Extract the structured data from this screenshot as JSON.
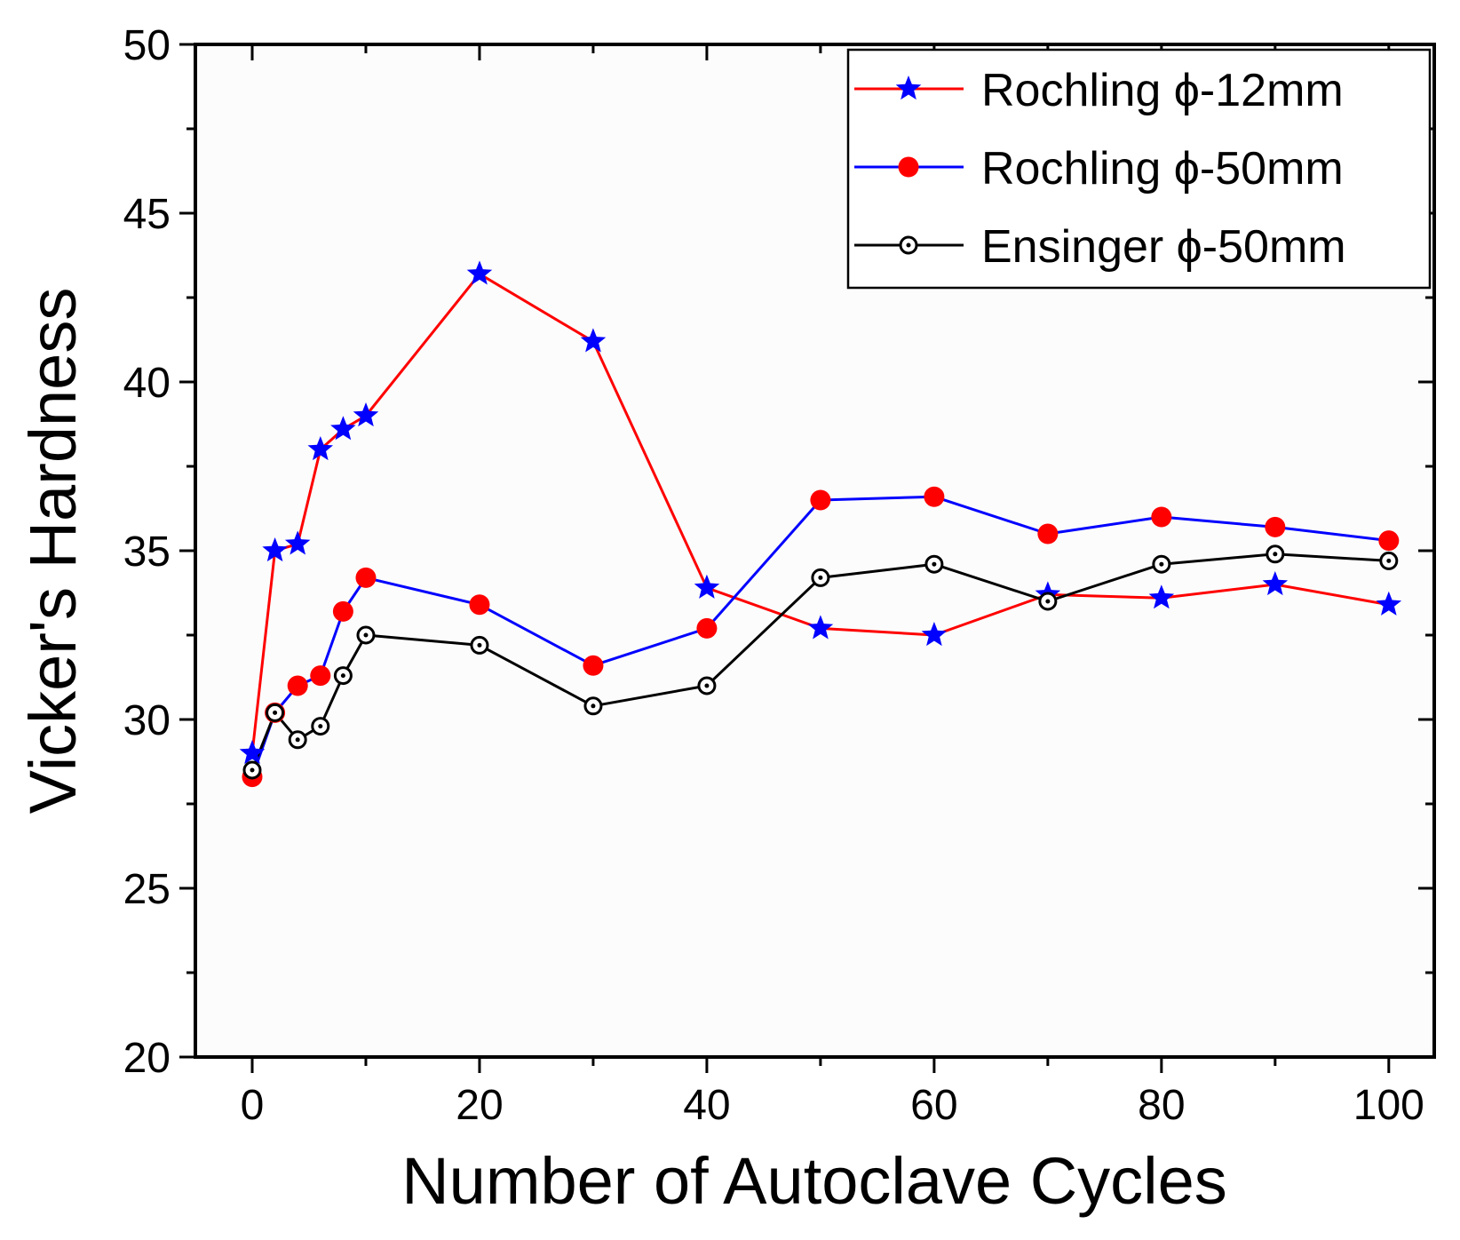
{
  "chart_data": {
    "type": "line",
    "title": "",
    "xlabel": "Number of Autoclave Cycles",
    "ylabel": "Vicker's Hardness",
    "xlim": [
      -5,
      104
    ],
    "ylim": [
      20,
      50
    ],
    "xticks": [
      0,
      20,
      40,
      60,
      80,
      100
    ],
    "yticks": [
      20,
      25,
      30,
      35,
      40,
      45,
      50
    ],
    "legend_position": "top-right",
    "series": [
      {
        "name": "Rochling ϕ-12mm",
        "line_color": "#ff0000",
        "marker": "star",
        "marker_color": "#0000ff",
        "x": [
          0,
          2,
          4,
          6,
          8,
          10,
          20,
          30,
          40,
          50,
          60,
          70,
          80,
          90,
          100
        ],
        "y": [
          29.0,
          35.0,
          35.2,
          38.0,
          38.6,
          39.0,
          43.2,
          41.2,
          33.9,
          32.7,
          32.5,
          33.7,
          33.6,
          34.0,
          33.4
        ]
      },
      {
        "name": "Rochling ϕ-50mm",
        "line_color": "#0000ff",
        "marker": "circle",
        "marker_color": "#ff0000",
        "x": [
          0,
          2,
          4,
          6,
          8,
          10,
          20,
          30,
          40,
          50,
          60,
          70,
          80,
          90,
          100
        ],
        "y": [
          28.3,
          30.2,
          31.0,
          31.3,
          33.2,
          34.2,
          33.4,
          31.6,
          32.7,
          36.5,
          36.6,
          35.5,
          36.0,
          35.7,
          35.3
        ]
      },
      {
        "name": "Ensinger ϕ-50mm",
        "line_color": "#000000",
        "marker": "dotted-circle",
        "marker_color": "#000000",
        "x": [
          0,
          2,
          4,
          6,
          8,
          10,
          20,
          30,
          40,
          50,
          60,
          70,
          80,
          90,
          100
        ],
        "y": [
          28.5,
          30.2,
          29.4,
          29.8,
          31.3,
          32.5,
          32.2,
          30.4,
          31.0,
          34.2,
          34.6,
          33.5,
          34.6,
          34.9,
          34.7
        ]
      }
    ]
  }
}
